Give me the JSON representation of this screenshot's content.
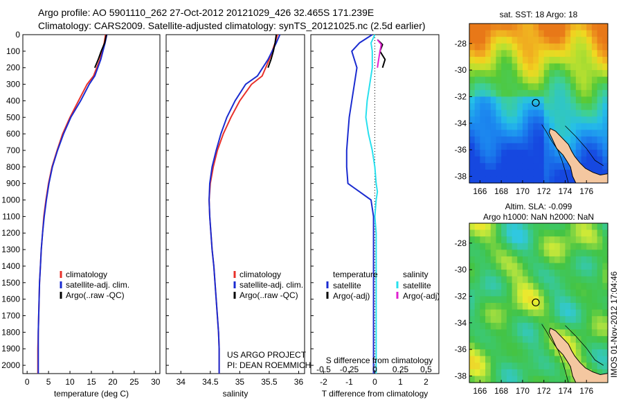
{
  "header": {
    "line1": "Argo profile: AO 5901110_262 27-Oct-2012 20121029_426 32.465S 171.239E",
    "line2": "Climatology: CARS2009. Satellite-adjusted climatology: synTS_20121025.nc (2.5d earlier)"
  },
  "colors": {
    "climatology": "#e8302a",
    "satellite": "#1a2bd0",
    "argo": "#000000",
    "sal_satellite": "#27e0ee",
    "sal_argo": "#e020d0"
  },
  "chart_data": [
    {
      "id": "temperature",
      "type": "line",
      "xlabel": "temperature (deg C)",
      "ylabel": "",
      "xlim": [
        -1,
        31
      ],
      "ylim": [
        2050,
        0
      ],
      "xticks": [
        0,
        5,
        10,
        15,
        20,
        25,
        30
      ],
      "yticks": [
        0,
        100,
        200,
        300,
        400,
        500,
        600,
        700,
        800,
        900,
        1000,
        1100,
        1200,
        1300,
        1400,
        1500,
        1600,
        1700,
        1800,
        1900,
        2000
      ],
      "legend": [
        "climatology",
        "satellite-adj. clim.",
        "Argo(..raw -QC)"
      ],
      "series": [
        {
          "name": "climatology",
          "color": "#e8302a",
          "x": [
            18.3,
            18.0,
            17.0,
            15.5,
            14.0,
            12.0,
            10.0,
            8.3,
            7.0,
            5.8,
            5.0,
            4.4,
            3.9,
            3.6,
            3.3,
            3.1,
            2.9,
            2.8,
            2.7,
            2.6,
            2.5,
            2.5
          ],
          "y": [
            0,
            50,
            150,
            250,
            300,
            400,
            500,
            600,
            700,
            800,
            900,
            1000,
            1100,
            1200,
            1300,
            1400,
            1500,
            1600,
            1700,
            1800,
            1900,
            2050
          ]
        },
        {
          "name": "satellite-adj. clim.",
          "color": "#1a2bd0",
          "x": [
            18.6,
            18.2,
            17.2,
            15.8,
            14.5,
            12.5,
            10.2,
            8.5,
            7.1,
            5.9,
            5.1,
            4.5,
            4.0,
            3.6,
            3.3,
            3.1,
            2.9,
            2.8,
            2.7,
            2.6,
            2.6,
            2.6
          ],
          "y": [
            0,
            50,
            150,
            250,
            300,
            400,
            500,
            600,
            700,
            800,
            900,
            1000,
            1100,
            1200,
            1300,
            1400,
            1500,
            1600,
            1700,
            1800,
            1900,
            2050
          ]
        },
        {
          "name": "Argo(..raw -QC)",
          "color": "#000000",
          "x": [
            18.5,
            18.1,
            17.3,
            16.6,
            15.8
          ],
          "y": [
            0,
            50,
            100,
            150,
            200
          ]
        }
      ]
    },
    {
      "id": "salinity",
      "type": "line",
      "xlabel": "salinity",
      "ylabel": "",
      "xlim": [
        33.75,
        36.1
      ],
      "ylim": [
        2050,
        0
      ],
      "xticks": [
        34,
        34.5,
        35,
        35.5,
        36
      ],
      "legend": [
        "climatology",
        "satellite-adj. clim.",
        "Argo(..raw -QC)"
      ],
      "annotation": [
        "US ARGO PROJECT",
        "PI: DEAN ROEMMICH"
      ],
      "series": [
        {
          "name": "climatology",
          "color": "#e8302a",
          "x": [
            35.64,
            35.6,
            35.5,
            35.38,
            35.2,
            35.0,
            34.85,
            34.72,
            34.62,
            34.55,
            34.5,
            34.48,
            34.49,
            34.51,
            34.53,
            34.56,
            34.58,
            34.6,
            34.62,
            34.64,
            34.65,
            34.65
          ],
          "y": [
            0,
            50,
            150,
            250,
            300,
            400,
            500,
            600,
            700,
            800,
            900,
            1000,
            1100,
            1200,
            1300,
            1400,
            1500,
            1600,
            1700,
            1800,
            1900,
            2050
          ]
        },
        {
          "name": "satellite-adj. clim.",
          "color": "#1a2bd0",
          "x": [
            35.68,
            35.62,
            35.48,
            35.3,
            35.1,
            34.92,
            34.78,
            34.68,
            34.6,
            34.53,
            34.49,
            34.48,
            34.49,
            34.51,
            34.53,
            34.56,
            34.58,
            34.6,
            34.62,
            34.64,
            34.65,
            34.65
          ],
          "y": [
            0,
            50,
            150,
            250,
            300,
            400,
            500,
            600,
            700,
            800,
            900,
            1000,
            1100,
            1200,
            1300,
            1400,
            1500,
            1600,
            1700,
            1800,
            1900,
            2050
          ]
        },
        {
          "name": "Argo(..raw -QC)",
          "color": "#000000",
          "x": [
            35.62,
            35.6,
            35.57,
            35.53,
            35.48
          ],
          "y": [
            0,
            50,
            100,
            150,
            200
          ]
        }
      ]
    },
    {
      "id": "difference",
      "type": "line",
      "xlabel": "T difference from climatology",
      "xlabel2": "S difference from climatology",
      "ylabel": "",
      "xlim": [
        -2.5,
        2.5
      ],
      "ylim": [
        2050,
        0
      ],
      "xticks": [
        -2,
        -1,
        0,
        1,
        2
      ],
      "xticks2": [
        -0.5,
        -0.25,
        0,
        0.25,
        0.5
      ],
      "legend_temperature": [
        "temperature",
        "satellite",
        "Argo(-adj)"
      ],
      "legend_salinity": [
        "salinity",
        "satellite",
        "Argo(-adj)"
      ],
      "series": [
        {
          "name": "temperature satellite",
          "color": "#1a2bd0",
          "x": [
            -0.1,
            -0.6,
            -0.9,
            -0.7,
            -0.8,
            -0.9,
            -1.0,
            -1.05,
            -1.1,
            -1.1,
            -1.05,
            -0.6,
            -0.15,
            -0.05,
            -0.05,
            -0.05,
            -0.05,
            -0.05,
            -0.05,
            -0.05,
            -0.05
          ],
          "y": [
            0,
            50,
            100,
            200,
            300,
            400,
            500,
            600,
            700,
            800,
            900,
            950,
            1000,
            1100,
            1200,
            1400,
            1600,
            1800,
            1900,
            2000,
            2050
          ]
        },
        {
          "name": "salinity satellite",
          "color": "#27e0ee",
          "x": [
            0.0,
            -0.15,
            -0.1,
            -0.1,
            -0.2,
            -0.3,
            -0.35,
            -0.25,
            -0.1,
            0.0,
            0.05,
            0.1,
            0.05,
            0.0,
            0.05,
            0.05,
            0.05,
            0.05,
            0.05,
            0.05,
            0.05
          ],
          "y": [
            0,
            50,
            100,
            200,
            300,
            400,
            500,
            600,
            700,
            800,
            900,
            950,
            1000,
            1100,
            1200,
            1400,
            1600,
            1800,
            1900,
            2000,
            2050
          ]
        },
        {
          "name": "temperature Argo(-adj)",
          "color": "#000000",
          "x": [
            0.1,
            0.3,
            0.2,
            0.4,
            0.3
          ],
          "y": [
            30,
            60,
            100,
            150,
            200
          ]
        },
        {
          "name": "salinity Argo(-adj)",
          "color": "#e020d0",
          "x": [
            0.1,
            0.25,
            0.2,
            0.15,
            0.1
          ],
          "y": [
            30,
            60,
            100,
            150,
            200
          ]
        }
      ]
    },
    {
      "id": "sst-map",
      "type": "heatmap",
      "title": "sat. SST: 18 Argo: 18",
      "xlim": [
        165,
        178
      ],
      "ylim": [
        -38.5,
        -26.5
      ],
      "xticks": [
        166,
        168,
        170,
        172,
        174,
        176
      ],
      "yticks": [
        -28,
        -30,
        -32,
        -34,
        -36,
        -38
      ],
      "marker": {
        "x": 171.239,
        "y": -32.465
      }
    },
    {
      "id": "sla-map",
      "type": "heatmap",
      "title": "Altim. SLA: -0.099",
      "subtitle": "Argo h1000: NaN h2000: NaN",
      "xlim": [
        165,
        178
      ],
      "ylim": [
        -38.5,
        -26.5
      ],
      "xticks": [
        166,
        168,
        170,
        172,
        174,
        176
      ],
      "yticks": [
        -28,
        -30,
        -32,
        -34,
        -36,
        -38
      ],
      "marker": {
        "x": 171.239,
        "y": -32.465
      }
    }
  ],
  "stamp": "IMOS 01-Nov-2012 17:04:46"
}
